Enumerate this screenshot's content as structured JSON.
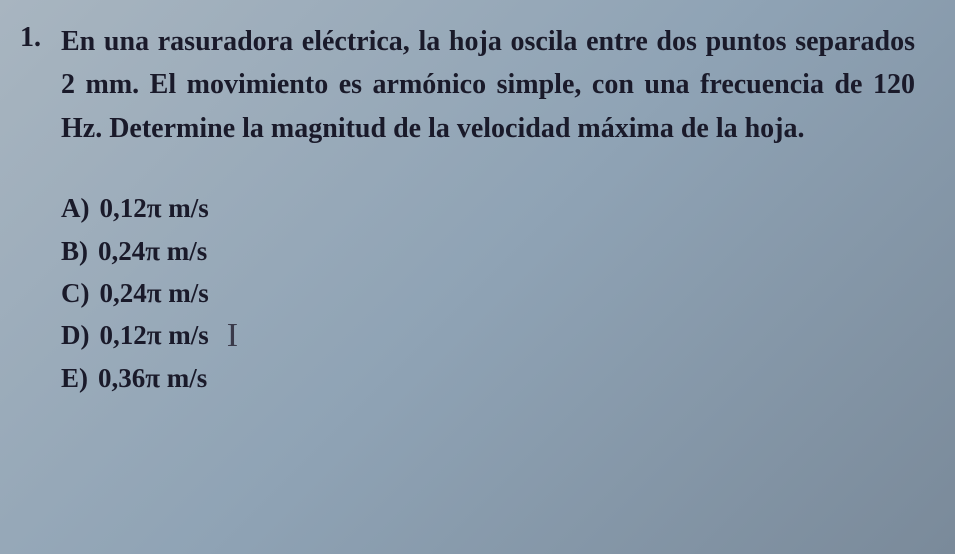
{
  "question": {
    "number": "1.",
    "text": "En una rasuradora eléctrica, la hoja oscila entre dos puntos separados 2 mm. El movimiento es armónico simple, con una frecuencia de 120 Hz. Determine la magnitud de la velocidad máxima de la hoja.",
    "options": [
      {
        "label": "A)",
        "value": "0,12π m/s"
      },
      {
        "label": "B)",
        "value": "0,24π m/s"
      },
      {
        "label": "C)",
        "value": "0,24π m/s"
      },
      {
        "label": "D)",
        "value": "0,12π m/s"
      },
      {
        "label": "E)",
        "value": "0,36π m/s"
      }
    ],
    "cursor_after_option_index": 3
  },
  "styling": {
    "background_gradient_start": "#a8b5c0",
    "background_gradient_end": "#7a8a9a",
    "text_color": "#1a1a2a",
    "question_fontsize": 28,
    "option_fontsize": 27,
    "font_family": "Georgia, serif",
    "font_weight": "bold",
    "line_height": 1.55
  }
}
